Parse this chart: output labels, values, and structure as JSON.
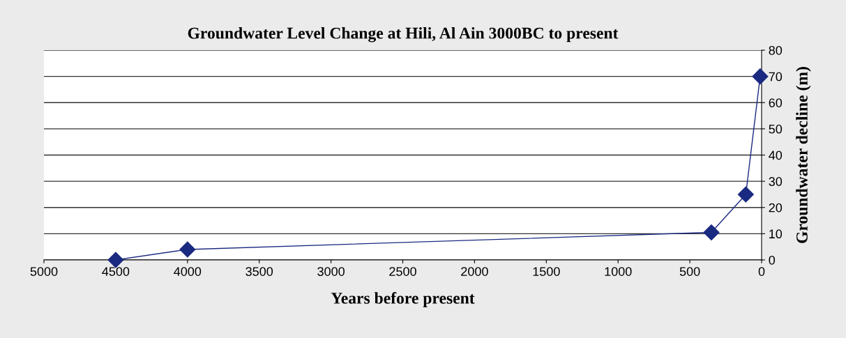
{
  "chart_data": {
    "type": "line",
    "title": "Groundwater Level Change at Hili, Al Ain 3000BC to present",
    "xlabel": "Years before present",
    "ylabel": "Groundwater decline (m)",
    "x": [
      4500,
      4000,
      350,
      110,
      10
    ],
    "series": [
      {
        "color": "#1a2a80",
        "values": [
          0,
          4,
          10.5,
          25,
          70
        ]
      }
    ],
    "xlim": [
      5000,
      0
    ],
    "xticks": [
      5000,
      4500,
      4000,
      3500,
      3000,
      2500,
      2000,
      1500,
      1000,
      500,
      0
    ],
    "ylim": [
      0,
      80
    ],
    "yticks": [
      0,
      10,
      20,
      30,
      40,
      50,
      60,
      70,
      80
    ],
    "grid": "y",
    "marker": "diamond",
    "line_style": "solid",
    "legend": false
  }
}
